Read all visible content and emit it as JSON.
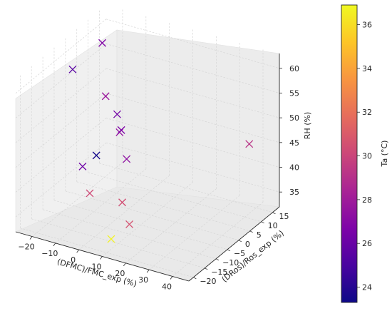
{
  "chart_data": {
    "type": "scatter",
    "projection": "3d",
    "marker": "x",
    "xlabel": "(DFMC)/FMC_exp (%)",
    "ylabel": "(DRos)/Ros_exp (%)",
    "zlabel": "RH (%)",
    "colorbar_label": "Ta (°C)",
    "colormap": "plasma",
    "x_ticks": [
      -20,
      -10,
      0,
      10,
      20,
      30,
      40
    ],
    "y_ticks": [
      -20,
      -15,
      -10,
      -5,
      0,
      5,
      10,
      15
    ],
    "z_ticks": [
      35,
      40,
      45,
      50,
      55,
      60
    ],
    "colorbar_ticks": [
      24,
      26,
      28,
      30,
      32,
      34,
      36
    ],
    "colorbar_range": [
      23.3,
      36.9
    ],
    "grid": true,
    "points": [
      {
        "x": -22,
        "y": -2,
        "z": 58,
        "c": 25.5
      },
      {
        "x": -19,
        "y": 8,
        "z": 60,
        "c": 26.8
      },
      {
        "x": -5,
        "y": -5,
        "z": 56,
        "c": 27.8
      },
      {
        "x": -2,
        "y": -3,
        "z": 52,
        "c": 26.3
      },
      {
        "x": 0,
        "y": -4,
        "z": 49,
        "c": 27.5
      },
      {
        "x": -8,
        "y": -6,
        "z": 44,
        "c": 23.5
      },
      {
        "x": -10,
        "y": -10,
        "z": 43,
        "c": 26.2
      },
      {
        "x": 3,
        "y": -4,
        "z": 44,
        "c": 27.3
      },
      {
        "x": -8,
        "y": 5,
        "z": 45,
        "c": 26.7
      },
      {
        "x": -5,
        "y": -12,
        "z": 39,
        "c": 30.2
      },
      {
        "x": 5,
        "y": -8,
        "z": 37,
        "c": 30.4
      },
      {
        "x": 10,
        "y": -10,
        "z": 34,
        "c": 30.6
      },
      {
        "x": 8,
        "y": -16,
        "z": 33,
        "c": 36.7
      },
      {
        "x": 38,
        "y": 14,
        "z": 45,
        "c": 29.2
      }
    ]
  }
}
